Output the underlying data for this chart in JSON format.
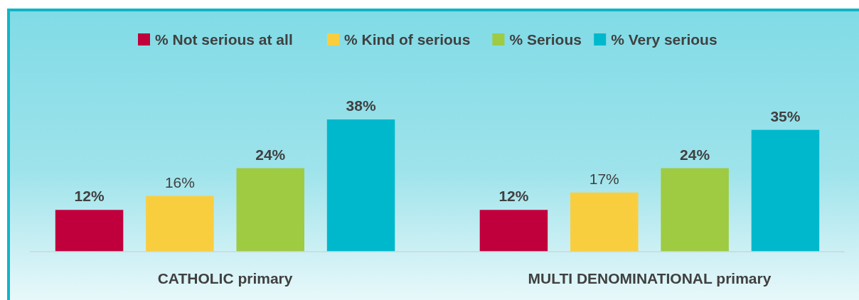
{
  "chart_data": {
    "type": "bar",
    "categories": [
      "CATHOLIC primary",
      "MULTI DENOMINATIONAL primary"
    ],
    "series": [
      {
        "name": "% Not serious at all",
        "color": "#c0003c",
        "values": [
          12,
          12
        ],
        "value_labels": [
          "12%",
          "12%"
        ]
      },
      {
        "name": "% Kind of serious",
        "color": "#f9ce3e",
        "values": [
          16,
          17
        ],
        "value_labels": [
          "16%",
          "17%"
        ]
      },
      {
        "name": "% Serious",
        "color": "#9ecb42",
        "values": [
          24,
          24
        ],
        "value_labels": [
          "24%",
          "24%"
        ]
      },
      {
        "name": "% Very serious",
        "color": "#00b8cc",
        "values": [
          38,
          35
        ],
        "value_labels": [
          "38%",
          "35%"
        ]
      }
    ],
    "legend": "top"
  }
}
